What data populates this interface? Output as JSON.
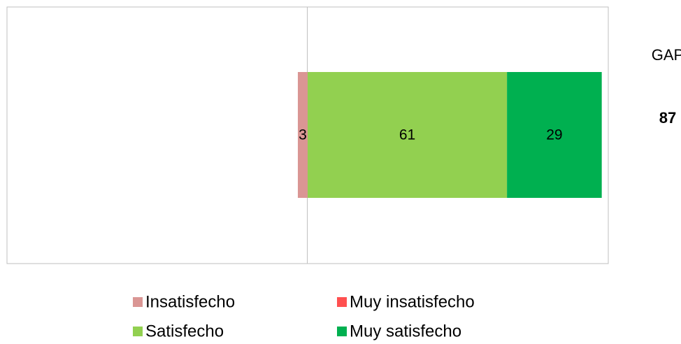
{
  "chart_data": {
    "type": "diverging_bar",
    "series": [
      {
        "name": "Insatisfecho",
        "color": "#da9694",
        "label_color": "#000000",
        "values": [
          3
        ]
      },
      {
        "name": "Muy insatisfecho",
        "color": "#ff5050",
        "label_color": "#000000",
        "values": [
          0
        ]
      },
      {
        "name": "Satisfecho",
        "color": "#92d050",
        "label_color": "#000000",
        "values": [
          61
        ]
      },
      {
        "name": "Muy satisfecho",
        "color": "#00b050",
        "label_color": "#ffffff",
        "values": [
          29
        ]
      }
    ],
    "negative_series": [
      0,
      1
    ],
    "xlim": [
      -92,
      92
    ],
    "gap_label": "GAP",
    "gap_value": 87,
    "gap_color": "#0070c0"
  }
}
